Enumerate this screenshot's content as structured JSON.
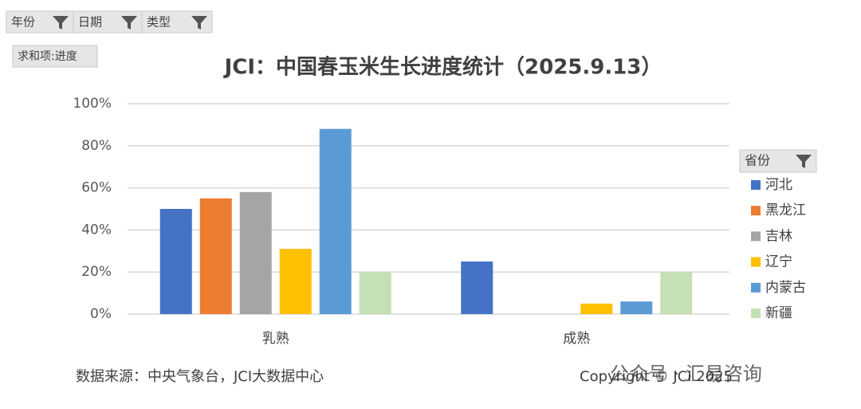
{
  "chart_data": {
    "type": "bar",
    "title": "JCI：中国春玉米生长进度统计（2025.9.13）",
    "categories": [
      "乳熟",
      "成熟"
    ],
    "series": [
      {
        "name": "河北",
        "color": "#4472c4",
        "values": [
          50,
          25
        ]
      },
      {
        "name": "黑龙江",
        "color": "#ed7d31",
        "values": [
          55,
          0
        ]
      },
      {
        "name": "吉林",
        "color": "#a5a5a5",
        "values": [
          58,
          0
        ]
      },
      {
        "name": "辽宁",
        "color": "#ffc000",
        "values": [
          31,
          5
        ]
      },
      {
        "name": "内蒙古",
        "color": "#5b9bd5",
        "values": [
          88,
          6
        ]
      },
      {
        "name": "新疆",
        "color": "#c5e0b4",
        "values": [
          20,
          20
        ]
      }
    ],
    "ylim": [
      0,
      100
    ],
    "yticks": [
      {
        "value": 0,
        "label": "0%"
      },
      {
        "value": 20,
        "label": "20%"
      },
      {
        "value": 40,
        "label": "40%"
      },
      {
        "value": 60,
        "label": "60%"
      },
      {
        "value": 80,
        "label": "80%"
      },
      {
        "value": 100,
        "label": "100%"
      }
    ],
    "grid": true,
    "legend": "right",
    "legend_title": "省份"
  },
  "filters": [
    "年份",
    "日期",
    "类型"
  ],
  "sum_label": "求和项:进度",
  "source": "数据来源：中央气象台，JCI大数据中心",
  "copyright": "Copyright © JCI 2025",
  "watermark": "公众号 · 汇易咨询"
}
